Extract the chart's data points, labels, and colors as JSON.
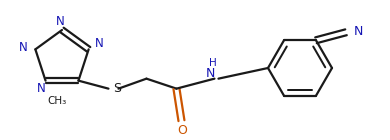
{
  "bg_color": "#ffffff",
  "line_color": "#1a1a1a",
  "n_color": "#1414b4",
  "o_color": "#cc5500",
  "s_color": "#1a1a1a",
  "line_width": 1.6,
  "figsize": [
    3.9,
    1.4
  ],
  "dpi": 100,
  "xlim": [
    0,
    390
  ],
  "ylim": [
    0,
    140
  ]
}
